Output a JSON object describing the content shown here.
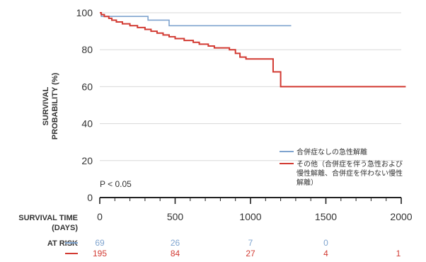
{
  "chart_data": {
    "type": "line",
    "subtype": "kaplan-meier step",
    "ylabel_lines": [
      "SURVIVAL",
      "PROBABILITY (%)"
    ],
    "xlabel_lines": [
      "SURVIVAL TIME",
      "(DAYS)"
    ],
    "ylim": [
      0,
      100
    ],
    "xlim": [
      0,
      2000
    ],
    "yticks": [
      0,
      20,
      40,
      60,
      80,
      100
    ],
    "xticks": [
      0,
      500,
      1000,
      1500,
      2000
    ],
    "grid": "horizontal",
    "annotation": "P < 0.05",
    "legend_position": "right, lower-middle",
    "series": [
      {
        "name": "合併症なしの急性解離",
        "color": "#7fa4cf",
        "points": [
          [
            0,
            100
          ],
          [
            10,
            98
          ],
          [
            320,
            98
          ],
          [
            320,
            96
          ],
          [
            460,
            96
          ],
          [
            460,
            93
          ],
          [
            1270,
            93
          ]
        ]
      },
      {
        "name_lines": [
          "その他（合併症を伴う急性および",
          "慢性解離、合併症を伴わない慢性",
          "解離）"
        ],
        "color": "#d23a32",
        "points": [
          [
            0,
            100
          ],
          [
            10,
            99
          ],
          [
            30,
            98
          ],
          [
            60,
            97
          ],
          [
            80,
            96
          ],
          [
            110,
            95
          ],
          [
            150,
            94
          ],
          [
            200,
            93
          ],
          [
            250,
            92
          ],
          [
            300,
            91
          ],
          [
            340,
            90
          ],
          [
            380,
            89
          ],
          [
            420,
            88
          ],
          [
            460,
            87
          ],
          [
            500,
            86
          ],
          [
            560,
            85
          ],
          [
            620,
            84
          ],
          [
            660,
            83
          ],
          [
            720,
            82
          ],
          [
            760,
            81
          ],
          [
            860,
            80
          ],
          [
            900,
            78
          ],
          [
            930,
            76
          ],
          [
            970,
            75
          ],
          [
            1000,
            75
          ],
          [
            1150,
            75
          ],
          [
            1150,
            68
          ],
          [
            1190,
            68
          ],
          [
            1200,
            60
          ],
          [
            2030,
            60
          ]
        ]
      }
    ]
  },
  "at_risk": {
    "label": "AT RISK",
    "rows": [
      {
        "color": "#7fa4cf",
        "values": [
          "69",
          "26",
          "7",
          "0"
        ]
      },
      {
        "color": "#d23a32",
        "values": [
          "195",
          "84",
          "27",
          "4",
          "1"
        ]
      }
    ]
  }
}
